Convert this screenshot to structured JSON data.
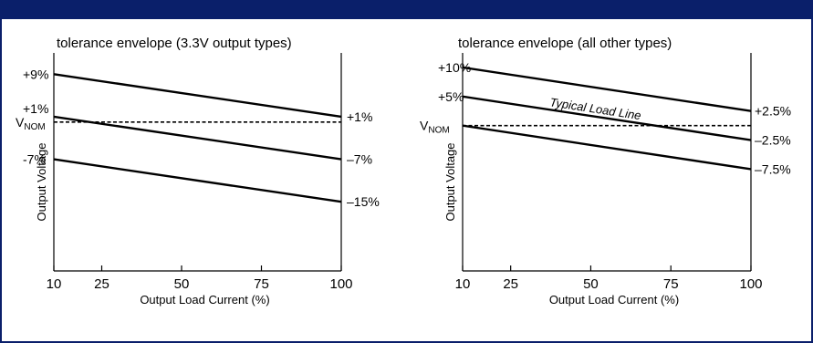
{
  "chart_data": [
    {
      "type": "line",
      "title": "tolerance envelope (3.3V output types)",
      "xlabel": "Output Load Current (%)",
      "ylabel": "Output Voltage",
      "x_ticks": [
        "10",
        "25",
        "50",
        "75",
        "100"
      ],
      "xlim": [
        10,
        100
      ],
      "ylim": [
        -28,
        13
      ],
      "nominal_label": "V",
      "nominal_sub": "NOM",
      "nominal_value": 0,
      "left_labels": [
        "+9%",
        "+1%",
        "-7%"
      ],
      "right_labels": [
        "+1%",
        "–7%",
        "–15%"
      ],
      "series": [
        {
          "values": [
            9,
            1
          ]
        },
        {
          "values": [
            1,
            -7
          ]
        },
        {
          "values": [
            -7,
            -15
          ]
        }
      ],
      "x": [
        10,
        100
      ],
      "grid": false
    },
    {
      "type": "line",
      "title": "tolerance envelope (all other types)",
      "xlabel": "Output Load Current (%)",
      "ylabel": "Output Voltage",
      "x_ticks": [
        "10",
        "25",
        "50",
        "75",
        "100"
      ],
      "xlim": [
        10,
        100
      ],
      "ylim": [
        -25,
        12.5
      ],
      "nominal_label": "V",
      "nominal_sub": "NOM",
      "nominal_value": 0,
      "left_labels": [
        "+10%",
        "+5%"
      ],
      "right_labels": [
        "+2.5%",
        "–2.5%",
        "–7.5%"
      ],
      "annotation": "Typical Load Line",
      "series": [
        {
          "values": [
            10,
            2.5
          ]
        },
        {
          "name": "Typical Load Line",
          "values": [
            5,
            -2.5
          ]
        },
        {
          "values": [
            0,
            -7.5
          ]
        }
      ],
      "x": [
        10,
        100
      ],
      "grid": false
    }
  ]
}
